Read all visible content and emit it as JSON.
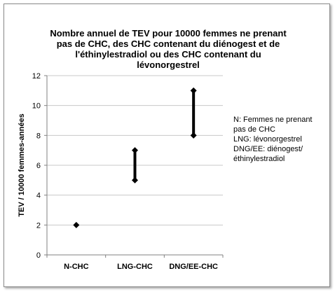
{
  "chart_data": {
    "type": "range",
    "title_lines": [
      "Nombre annuel de TEV pour 10000 femmes ne prenant",
      "pas de CHC, des CHC contenant du diénogest et de",
      "l'éthinylestradiol ou des CHC contenant du",
      "lévonorgestrel"
    ],
    "ylabel": "TEV / 10000 femmes-années",
    "xlabel": "",
    "ylim": [
      0,
      12
    ],
    "yticks": [
      0,
      2,
      4,
      6,
      8,
      10,
      12
    ],
    "grid": true,
    "categories": [
      "N-CHC",
      "LNG-CHC",
      "DNG/EE-CHC"
    ],
    "ranges": [
      {
        "category": "N-CHC",
        "low": 2,
        "high": 2
      },
      {
        "category": "LNG-CHC",
        "low": 5,
        "high": 7
      },
      {
        "category": "DNG/EE-CHC",
        "low": 8,
        "high": 11
      }
    ],
    "legend_placement": "right",
    "annotations": [
      "N: Femmes ne prenant",
      "pas de CHC",
      "LNG: lévonorgestrel",
      "DNG/EE: diénogest/",
      "éthinylestradiol"
    ]
  }
}
